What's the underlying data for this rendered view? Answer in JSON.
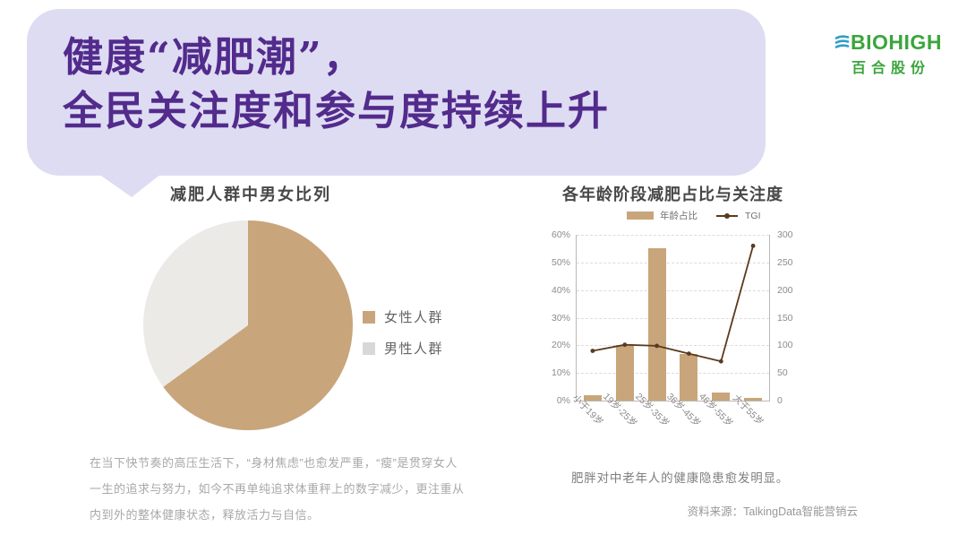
{
  "header": {
    "title_line1": "健康“减肥潮”，",
    "title_line2": "全民关注度和参与度持续上升",
    "bubble_color": "#DEDCF2",
    "title_color": "#522B8C"
  },
  "logo": {
    "brand": "BIOHIGH",
    "company": "百合股份",
    "brand_color": "#3BA53C",
    "leaf_color": "#2E9EC6"
  },
  "notes": {
    "left_paragraph": "在当下快节奏的高压生活下，“身材焦虑”也愈发严重，“瘦”是贯穿女人一生的追求与努力，如今不再单纯追求体重秤上的数字减少，更注重从内到外的整体健康状态，释放活力与自信。",
    "right_caption": "肥胖对中老年人的健康隐患愈发明显。",
    "source": "资料来源：TalkingData智能营销云"
  },
  "chart_data": [
    {
      "type": "pie",
      "title": "减肥人群中男女比列",
      "labels": [
        "女性人群",
        "男性人群"
      ],
      "values": [
        65,
        35
      ],
      "colors": [
        "#C8A57B",
        "#ECEAE7"
      ],
      "legend_colors": [
        "#C8A57B",
        "#D9D8D6"
      ],
      "legend_position": "right",
      "start_angle_deg": 0,
      "direction": "clockwise"
    },
    {
      "type": "bar",
      "title": "各年龄阶段减肥占比与关注度",
      "categories": [
        "小于19岁",
        "19岁-25岁",
        "25岁-35岁",
        "36岁-45岁",
        "46岁-55岁",
        "大于55岁"
      ],
      "series": [
        {
          "name": "年龄占比",
          "type": "bar",
          "axis": "left",
          "unit": "%",
          "values": [
            2,
            20,
            55,
            17,
            3,
            1
          ],
          "color": "#C8A57B"
        },
        {
          "name": "TGI",
          "type": "line",
          "axis": "right",
          "values": [
            90,
            101,
            99,
            85,
            71,
            280
          ],
          "color": "#5A3A1E"
        }
      ],
      "left_axis": {
        "min": 0,
        "max": 60,
        "step": 10,
        "ticks_top_to_bottom": [
          "60%",
          "50%",
          "40%",
          "30%",
          "20%",
          "10%",
          "0%"
        ]
      },
      "right_axis": {
        "min": 0,
        "max": 300,
        "step": 50,
        "ticks_top_to_bottom": [
          "300",
          "250",
          "200",
          "150",
          "100",
          "50",
          "0"
        ]
      },
      "grid": "dashed-horizontal",
      "legend_position": "top",
      "x_label_rotation_deg": 45
    }
  ]
}
